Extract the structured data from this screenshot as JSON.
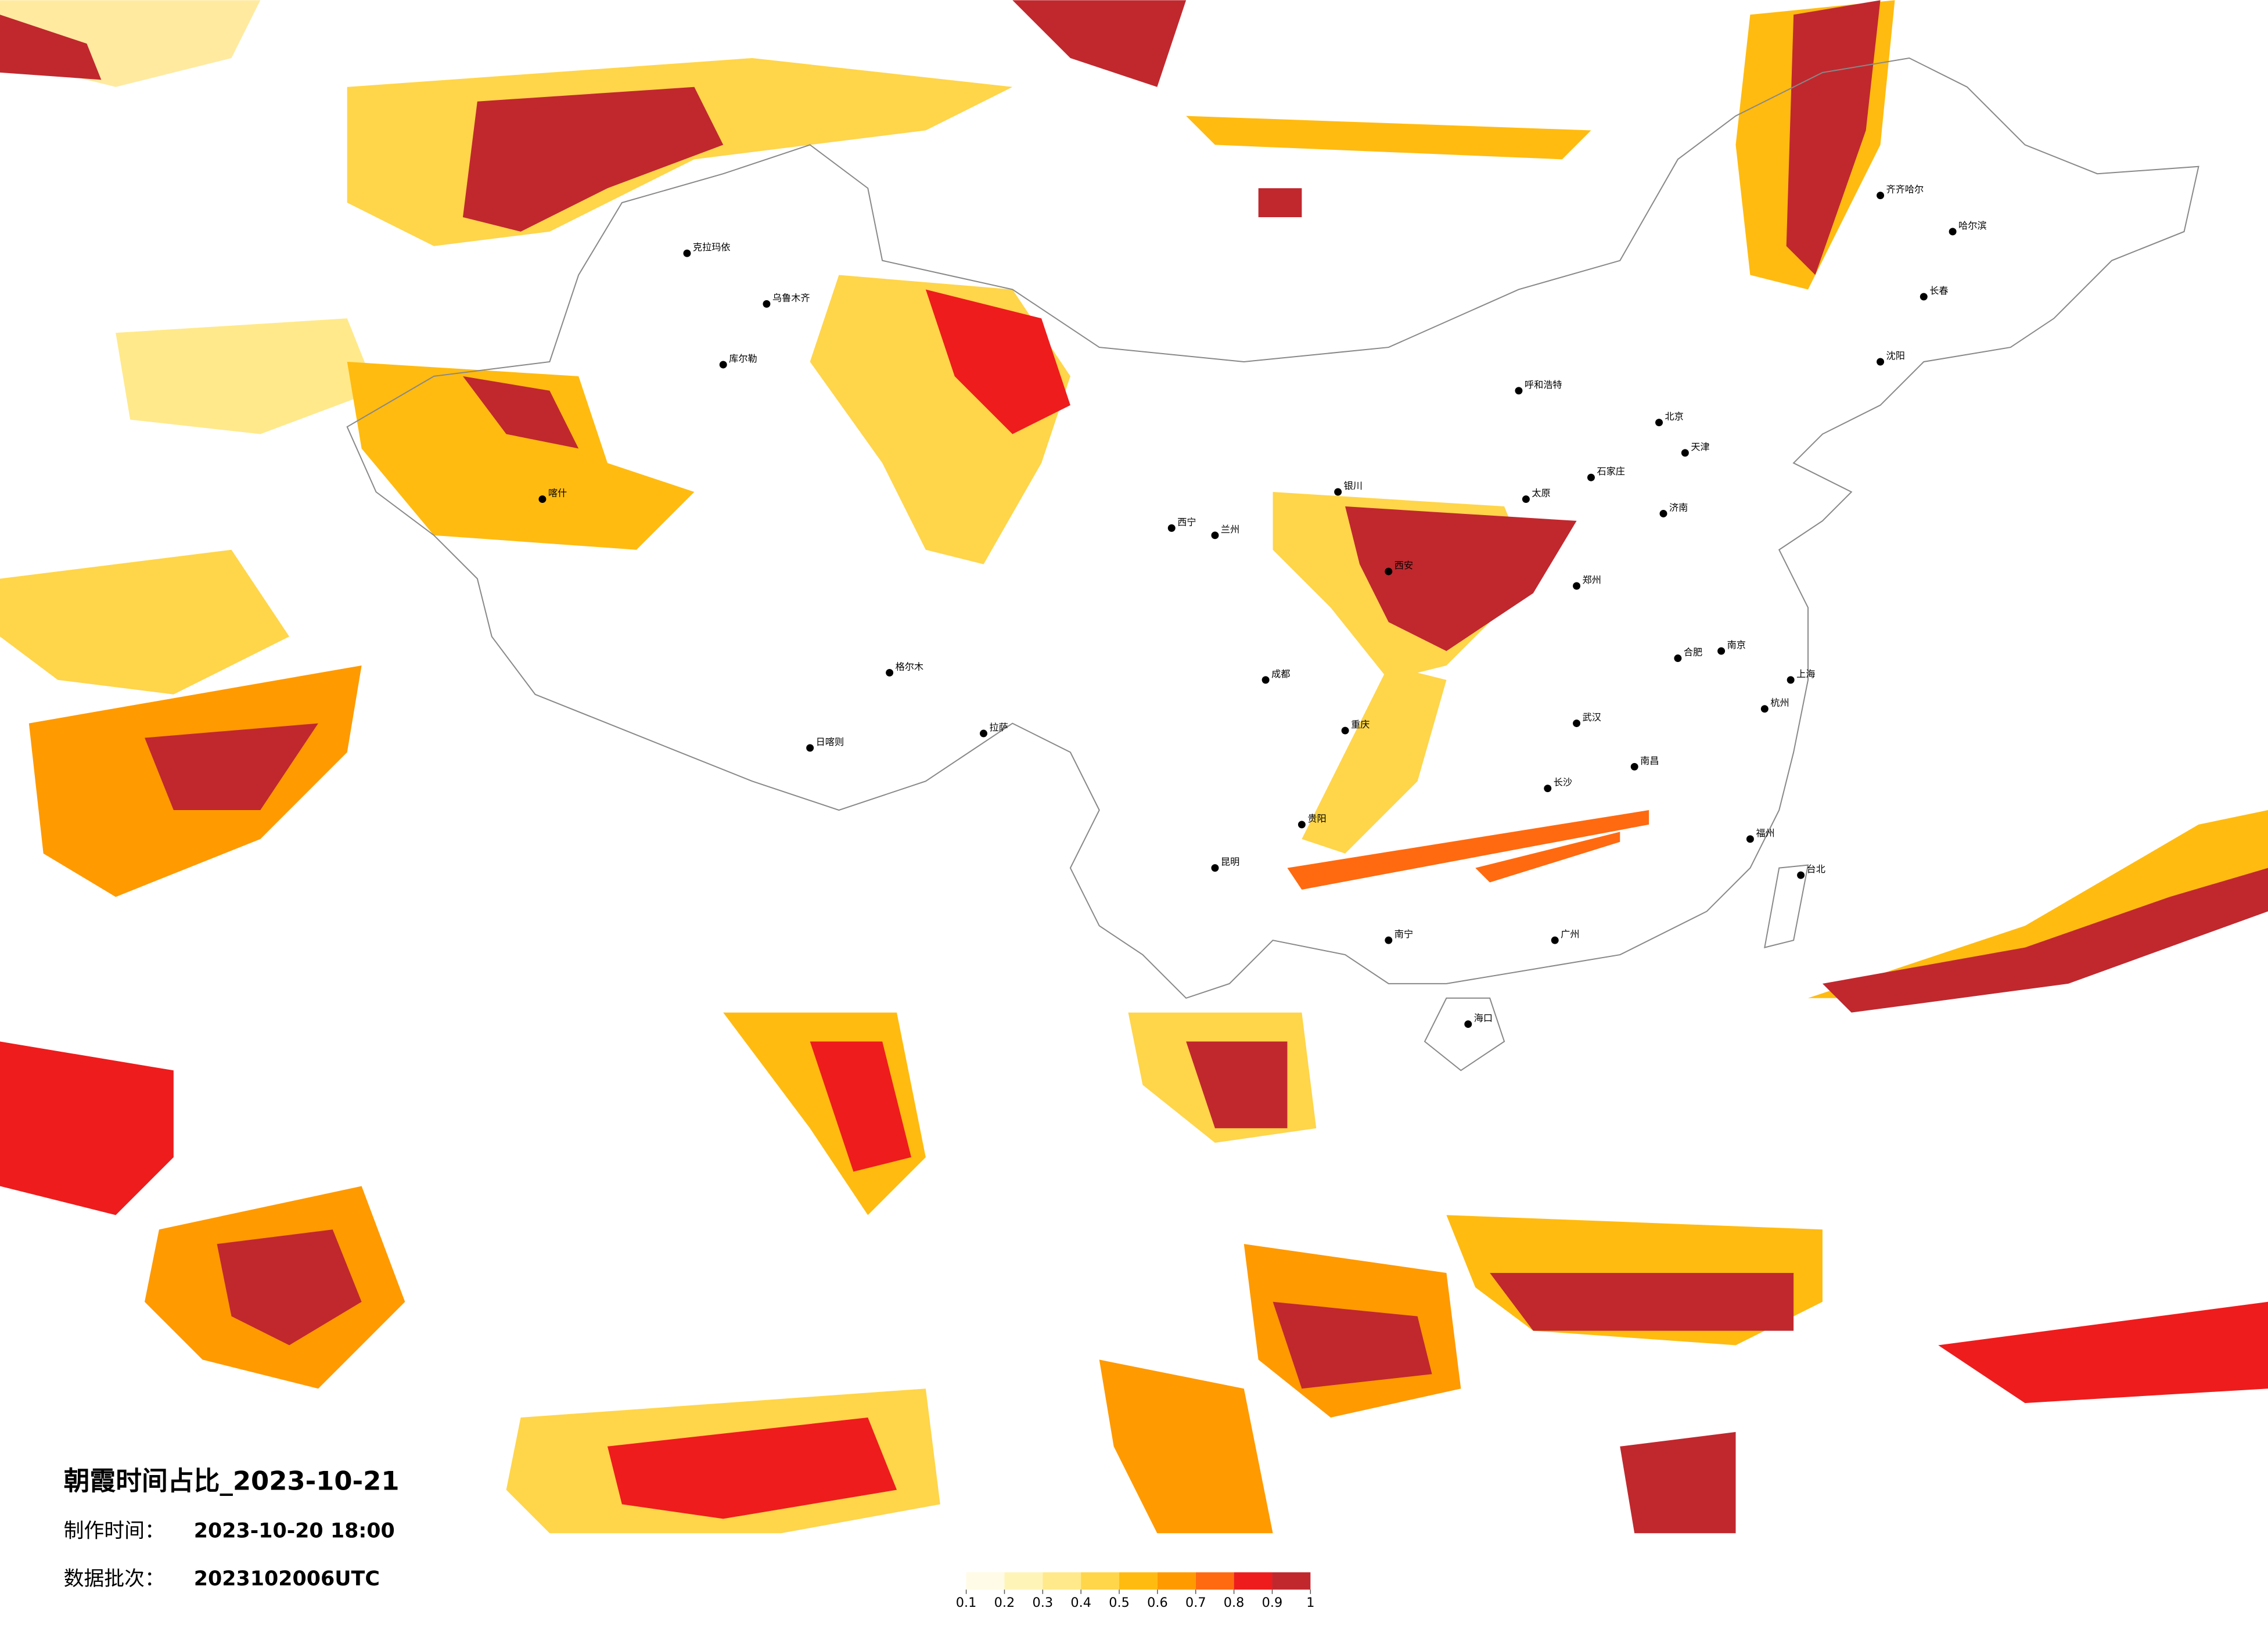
{
  "header": {
    "title": "朝霞时间占比_2023-10-21",
    "made_label": "制作时间：",
    "made_value": "2023-10-20 18:00",
    "batch_label": "数据批次：",
    "batch_value": "2023102006UTC"
  },
  "legend": {
    "ticks": [
      0.1,
      0.2,
      0.3,
      0.4,
      0.5,
      0.6,
      0.7,
      0.8,
      0.9,
      1
    ],
    "colors": [
      "#fffbe6",
      "#fff4b8",
      "#ffe98a",
      "#ffd54a",
      "#ffbb10",
      "#ff9a00",
      "#ff6a10",
      "#ee1c1c",
      "#c0282e"
    ]
  },
  "cities": [
    "北京",
    "天津",
    "上海",
    "广州",
    "重庆",
    "成都",
    "武汉",
    "西安",
    "兰州",
    "乌鲁木齐",
    "拉萨",
    "哈尔滨",
    "长春",
    "沈阳",
    "郑州",
    "南京",
    "杭州",
    "福州",
    "长沙",
    "南昌",
    "昆明",
    "贵阳",
    "南宁",
    "海口",
    "台北",
    "呼和浩特",
    "银川",
    "西宁",
    "济南",
    "石家庄",
    "太原",
    "合肥",
    "齐齐哈尔",
    "喀什",
    "克拉玛依",
    "库尔勒",
    "日喀则",
    "格尔木"
  ]
}
